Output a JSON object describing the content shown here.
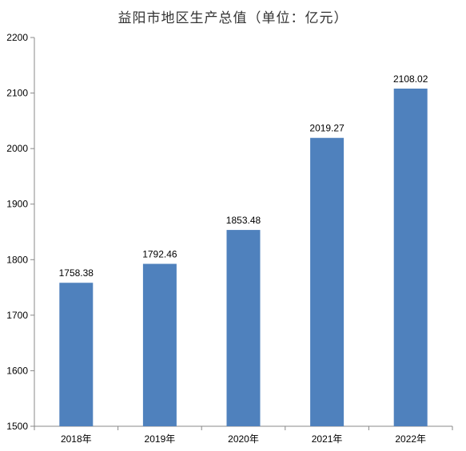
{
  "chart_data": {
    "type": "bar",
    "title": "益阳市地区生产总值（单位：亿元）",
    "categories": [
      "2018年",
      "2019年",
      "2020年",
      "2021年",
      "2022年"
    ],
    "values": [
      1758.38,
      1792.46,
      1853.48,
      2019.27,
      2108.02
    ],
    "value_labels": [
      "1758.38",
      "1792.46",
      "1853.48",
      "2019.27",
      "2108.02"
    ],
    "ylim": [
      1500,
      2200
    ],
    "yticks": [
      1500,
      1600,
      1700,
      1800,
      1900,
      2000,
      2100,
      2200
    ],
    "grid": false,
    "legend": "none",
    "bar_color": "#4F81BD"
  }
}
